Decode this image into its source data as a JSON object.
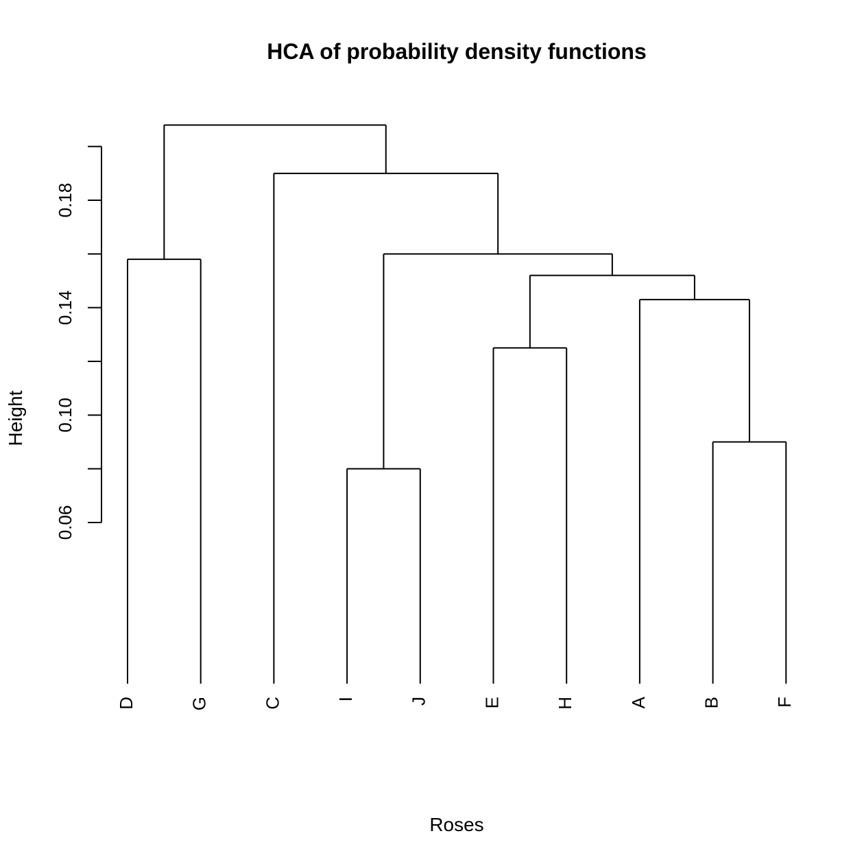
{
  "chart_data": {
    "type": "dendrogram",
    "title": "HCA of probability density functions",
    "xlabel": "Roses",
    "ylabel": "Height",
    "ylim": [
      0,
      0.2
    ],
    "yticks": [
      0.06,
      0.1,
      0.14,
      0.18
    ],
    "ytick_labels": [
      "0.06",
      "0.10",
      "0.14",
      "0.18"
    ],
    "leaves": [
      "D",
      "G",
      "C",
      "I",
      "J",
      "E",
      "H",
      "A",
      "B",
      "F"
    ],
    "merges": [
      {
        "id": "m1",
        "left": "I",
        "right": "J",
        "height": 0.08
      },
      {
        "id": "m2",
        "left": "B",
        "right": "F",
        "height": 0.09
      },
      {
        "id": "m3",
        "left": "E",
        "right": "H",
        "height": 0.125
      },
      {
        "id": "m4",
        "left": "A",
        "right": "m2",
        "height": 0.143
      },
      {
        "id": "m5",
        "left": "m3",
        "right": "m4",
        "height": 0.152
      },
      {
        "id": "m6",
        "left": "D",
        "right": "G",
        "height": 0.158
      },
      {
        "id": "m7",
        "left": "m1",
        "right": "m5",
        "height": 0.16
      },
      {
        "id": "m8",
        "left": "C",
        "right": "m7",
        "height": 0.19
      },
      {
        "id": "m9",
        "left": "m6",
        "right": "m8",
        "height": 0.208
      }
    ]
  }
}
